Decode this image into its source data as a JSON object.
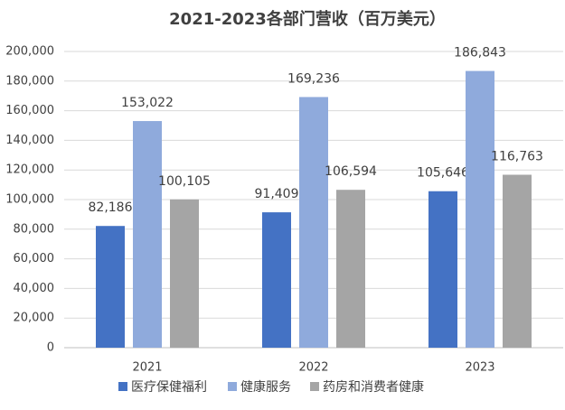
{
  "chart_data": {
    "type": "bar",
    "title": "2021-2023各部门营收（百万美元）",
    "categories": [
      "2021",
      "2022",
      "2023"
    ],
    "series": [
      {
        "name": "医疗保健福利",
        "color": "#4472c4",
        "values": [
          82186,
          91409,
          105646
        ],
        "value_labels": [
          "82,186",
          "91,409",
          "105,646"
        ]
      },
      {
        "name": "健康服务",
        "color": "#8faadc",
        "values": [
          153022,
          169236,
          186843
        ],
        "value_labels": [
          "153,022",
          "169,236",
          "186,843"
        ]
      },
      {
        "name": "药房和消费者健康",
        "color": "#a5a5a5",
        "values": [
          100105,
          106594,
          116763
        ],
        "value_labels": [
          "100,105",
          "106,594",
          "116,763"
        ]
      }
    ],
    "ylim": [
      0,
      200000
    ],
    "yticks": [
      {
        "value": 0,
        "label": "0"
      },
      {
        "value": 20000,
        "label": "20,000"
      },
      {
        "value": 40000,
        "label": "40,000"
      },
      {
        "value": 60000,
        "label": "60,000"
      },
      {
        "value": 80000,
        "label": "80,000"
      },
      {
        "value": 100000,
        "label": "100,000"
      },
      {
        "value": 120000,
        "label": "120,000"
      },
      {
        "value": 140000,
        "label": "140,000"
      },
      {
        "value": 160000,
        "label": "160,000"
      },
      {
        "value": 180000,
        "label": "180,000"
      },
      {
        "value": 200000,
        "label": "200,000"
      }
    ],
    "grid": true,
    "legend": "bottom"
  }
}
